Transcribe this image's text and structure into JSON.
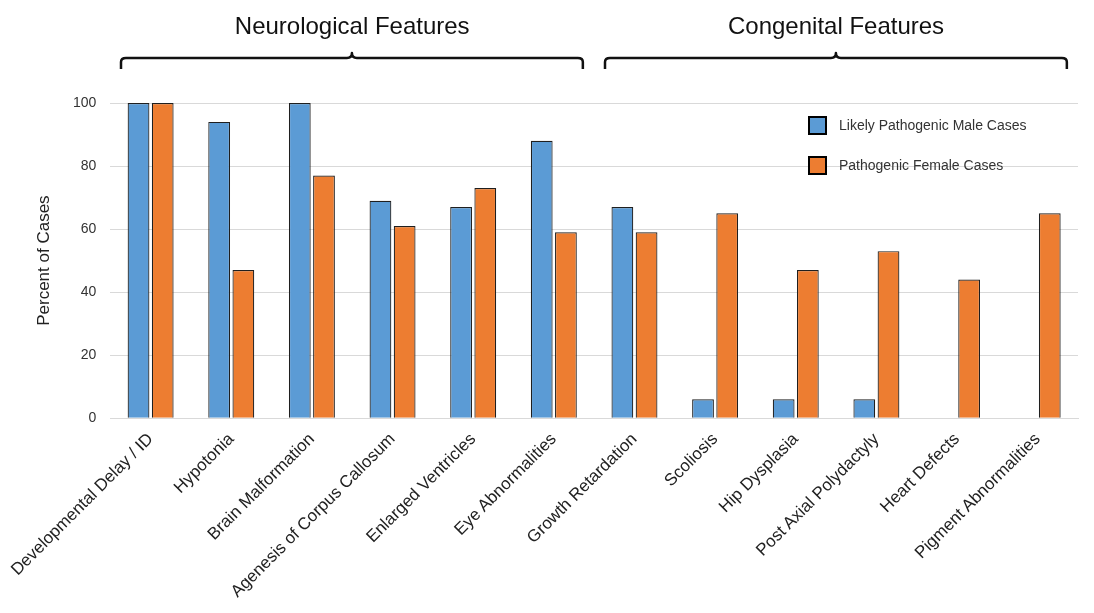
{
  "chart_data": {
    "type": "bar",
    "ylabel": "Percent of Cases",
    "categories": [
      "Developmental Delay / ID",
      "Hypotonia",
      "Brain Malformation",
      "Agenesis of Corpus Callosum",
      "Enlarged Ventricles",
      "Eye Abnormalities",
      "Growth Retardation",
      "Scoliosis",
      "Hip Dysplasia",
      "Post Axial Polydactyly",
      "Heart Defects",
      "Pigment Abnormalities"
    ],
    "series": [
      {
        "name": "Likely Pathogenic Male Cases",
        "color": "#5b9bd5",
        "values": [
          100,
          94,
          100,
          69,
          67,
          88,
          67,
          6,
          6,
          6,
          0,
          0
        ]
      },
      {
        "name": "Pathogenic Female Cases",
        "color": "#ed7d31",
        "values": [
          100,
          47,
          77,
          61,
          73,
          59,
          59,
          65,
          47,
          53,
          44,
          65
        ]
      }
    ],
    "ylim": [
      0,
      100
    ],
    "yticks": [
      0,
      20,
      40,
      60,
      80,
      100
    ],
    "grid": "y",
    "legend": "top right",
    "annotations": [
      "Neurological Features",
      "Congenital Features"
    ]
  }
}
